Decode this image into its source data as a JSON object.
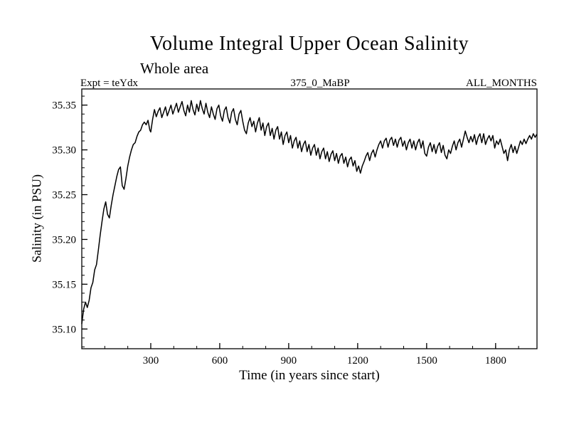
{
  "chart_data": {
    "type": "line",
    "title": "Volume Integral Upper Ocean Salinity",
    "subtitle": "Whole area",
    "annotations": {
      "expt": "Expt = teYdx",
      "period": "375_0_MaBP",
      "months": "ALL_MONTHS"
    },
    "xlabel": "Time (in years since start)",
    "ylabel": "Salinity (in PSU)",
    "xlim": [
      0,
      1980
    ],
    "ylim": [
      35.078,
      35.368
    ],
    "xticks": [
      300,
      600,
      900,
      1200,
      1500,
      1800
    ],
    "xtick_labels": [
      "300",
      "600",
      "900",
      "1200",
      "1500",
      "1800"
    ],
    "yticks": [
      35.1,
      35.15,
      35.2,
      35.25,
      35.3,
      35.35
    ],
    "ytick_labels": [
      "35.10",
      "35.15",
      "35.20",
      "35.25",
      "35.30",
      "35.35"
    ],
    "xminor_step": 100,
    "yminor_step": 0.01,
    "grid": false,
    "legend": "none",
    "line_color": "#000000",
    "series": [
      {
        "name": "volume-integral-upper-ocean-salinity",
        "points": [
          [
            0,
            35.106
          ],
          [
            8,
            35.122
          ],
          [
            16,
            35.13
          ],
          [
            24,
            35.124
          ],
          [
            32,
            35.132
          ],
          [
            40,
            35.146
          ],
          [
            48,
            35.152
          ],
          [
            56,
            35.166
          ],
          [
            64,
            35.172
          ],
          [
            72,
            35.188
          ],
          [
            80,
            35.205
          ],
          [
            88,
            35.22
          ],
          [
            96,
            35.234
          ],
          [
            104,
            35.242
          ],
          [
            112,
            35.228
          ],
          [
            120,
            35.224
          ],
          [
            128,
            35.238
          ],
          [
            136,
            35.25
          ],
          [
            144,
            35.26
          ],
          [
            152,
            35.27
          ],
          [
            160,
            35.278
          ],
          [
            168,
            35.281
          ],
          [
            176,
            35.26
          ],
          [
            184,
            35.256
          ],
          [
            192,
            35.268
          ],
          [
            200,
            35.282
          ],
          [
            208,
            35.292
          ],
          [
            216,
            35.3
          ],
          [
            224,
            35.306
          ],
          [
            232,
            35.308
          ],
          [
            240,
            35.315
          ],
          [
            248,
            35.32
          ],
          [
            256,
            35.322
          ],
          [
            264,
            35.328
          ],
          [
            272,
            35.331
          ],
          [
            280,
            35.328
          ],
          [
            288,
            35.333
          ],
          [
            296,
            35.322
          ],
          [
            300,
            35.32
          ],
          [
            308,
            35.334
          ],
          [
            316,
            35.345
          ],
          [
            324,
            35.337
          ],
          [
            332,
            35.343
          ],
          [
            340,
            35.347
          ],
          [
            348,
            35.336
          ],
          [
            356,
            35.342
          ],
          [
            364,
            35.348
          ],
          [
            372,
            35.338
          ],
          [
            380,
            35.344
          ],
          [
            388,
            35.35
          ],
          [
            396,
            35.34
          ],
          [
            404,
            35.346
          ],
          [
            412,
            35.352
          ],
          [
            420,
            35.342
          ],
          [
            428,
            35.348
          ],
          [
            436,
            35.354
          ],
          [
            444,
            35.344
          ],
          [
            452,
            35.338
          ],
          [
            460,
            35.35
          ],
          [
            468,
            35.342
          ],
          [
            476,
            35.355
          ],
          [
            484,
            35.345
          ],
          [
            492,
            35.339
          ],
          [
            500,
            35.351
          ],
          [
            508,
            35.343
          ],
          [
            516,
            35.355
          ],
          [
            524,
            35.346
          ],
          [
            532,
            35.34
          ],
          [
            540,
            35.352
          ],
          [
            548,
            35.342
          ],
          [
            556,
            35.336
          ],
          [
            564,
            35.348
          ],
          [
            572,
            35.34
          ],
          [
            580,
            35.334
          ],
          [
            588,
            35.346
          ],
          [
            596,
            35.35
          ],
          [
            604,
            35.338
          ],
          [
            612,
            35.332
          ],
          [
            620,
            35.344
          ],
          [
            628,
            35.348
          ],
          [
            636,
            35.336
          ],
          [
            644,
            35.33
          ],
          [
            652,
            35.342
          ],
          [
            660,
            35.346
          ],
          [
            668,
            35.334
          ],
          [
            676,
            35.328
          ],
          [
            684,
            35.34
          ],
          [
            692,
            35.344
          ],
          [
            700,
            35.332
          ],
          [
            708,
            35.322
          ],
          [
            716,
            35.318
          ],
          [
            724,
            35.33
          ],
          [
            732,
            35.336
          ],
          [
            740,
            35.326
          ],
          [
            748,
            35.332
          ],
          [
            756,
            35.32
          ],
          [
            764,
            35.33
          ],
          [
            772,
            35.336
          ],
          [
            780,
            35.322
          ],
          [
            788,
            35.33
          ],
          [
            796,
            35.316
          ],
          [
            804,
            35.326
          ],
          [
            812,
            35.33
          ],
          [
            820,
            35.316
          ],
          [
            828,
            35.324
          ],
          [
            836,
            35.312
          ],
          [
            844,
            35.322
          ],
          [
            852,
            35.326
          ],
          [
            860,
            35.312
          ],
          [
            868,
            35.32
          ],
          [
            876,
            35.306
          ],
          [
            884,
            35.316
          ],
          [
            892,
            35.32
          ],
          [
            900,
            35.308
          ],
          [
            908,
            35.316
          ],
          [
            916,
            35.302
          ],
          [
            924,
            35.31
          ],
          [
            932,
            35.314
          ],
          [
            940,
            35.302
          ],
          [
            948,
            35.31
          ],
          [
            956,
            35.298
          ],
          [
            964,
            35.306
          ],
          [
            972,
            35.31
          ],
          [
            980,
            35.298
          ],
          [
            988,
            35.306
          ],
          [
            996,
            35.294
          ],
          [
            1004,
            35.302
          ],
          [
            1012,
            35.306
          ],
          [
            1020,
            35.294
          ],
          [
            1028,
            35.302
          ],
          [
            1036,
            35.29
          ],
          [
            1044,
            35.298
          ],
          [
            1052,
            35.302
          ],
          [
            1060,
            35.29
          ],
          [
            1068,
            35.298
          ],
          [
            1076,
            35.287
          ],
          [
            1084,
            35.295
          ],
          [
            1092,
            35.299
          ],
          [
            1100,
            35.288
          ],
          [
            1108,
            35.296
          ],
          [
            1116,
            35.285
          ],
          [
            1124,
            35.293
          ],
          [
            1132,
            35.296
          ],
          [
            1140,
            35.285
          ],
          [
            1148,
            35.292
          ],
          [
            1156,
            35.281
          ],
          [
            1164,
            35.289
          ],
          [
            1172,
            35.292
          ],
          [
            1180,
            35.282
          ],
          [
            1188,
            35.288
          ],
          [
            1196,
            35.276
          ],
          [
            1204,
            35.282
          ],
          [
            1212,
            35.274
          ],
          [
            1220,
            35.282
          ],
          [
            1228,
            35.287
          ],
          [
            1236,
            35.293
          ],
          [
            1244,
            35.297
          ],
          [
            1252,
            35.288
          ],
          [
            1260,
            35.296
          ],
          [
            1268,
            35.3
          ],
          [
            1276,
            35.292
          ],
          [
            1284,
            35.3
          ],
          [
            1292,
            35.306
          ],
          [
            1300,
            35.31
          ],
          [
            1308,
            35.302
          ],
          [
            1316,
            35.31
          ],
          [
            1324,
            35.313
          ],
          [
            1332,
            35.303
          ],
          [
            1340,
            35.311
          ],
          [
            1348,
            35.314
          ],
          [
            1356,
            35.305
          ],
          [
            1364,
            35.312
          ],
          [
            1372,
            35.303
          ],
          [
            1380,
            35.311
          ],
          [
            1388,
            35.314
          ],
          [
            1396,
            35.304
          ],
          [
            1404,
            35.31
          ],
          [
            1412,
            35.3
          ],
          [
            1420,
            35.308
          ],
          [
            1428,
            35.312
          ],
          [
            1436,
            35.302
          ],
          [
            1444,
            35.31
          ],
          [
            1452,
            35.3
          ],
          [
            1460,
            35.308
          ],
          [
            1468,
            35.312
          ],
          [
            1476,
            35.302
          ],
          [
            1484,
            35.31
          ],
          [
            1492,
            35.296
          ],
          [
            1500,
            35.293
          ],
          [
            1508,
            35.303
          ],
          [
            1516,
            35.308
          ],
          [
            1524,
            35.298
          ],
          [
            1532,
            35.306
          ],
          [
            1540,
            35.296
          ],
          [
            1548,
            35.304
          ],
          [
            1556,
            35.308
          ],
          [
            1564,
            35.297
          ],
          [
            1572,
            35.305
          ],
          [
            1580,
            35.294
          ],
          [
            1588,
            35.29
          ],
          [
            1596,
            35.3
          ],
          [
            1604,
            35.296
          ],
          [
            1612,
            35.304
          ],
          [
            1620,
            35.31
          ],
          [
            1628,
            35.3
          ],
          [
            1636,
            35.308
          ],
          [
            1644,
            35.312
          ],
          [
            1652,
            35.303
          ],
          [
            1660,
            35.312
          ],
          [
            1668,
            35.321
          ],
          [
            1676,
            35.314
          ],
          [
            1684,
            35.308
          ],
          [
            1692,
            35.315
          ],
          [
            1700,
            35.309
          ],
          [
            1708,
            35.317
          ],
          [
            1716,
            35.306
          ],
          [
            1724,
            35.314
          ],
          [
            1732,
            35.318
          ],
          [
            1740,
            35.308
          ],
          [
            1748,
            35.318
          ],
          [
            1756,
            35.306
          ],
          [
            1764,
            35.312
          ],
          [
            1772,
            35.316
          ],
          [
            1780,
            35.31
          ],
          [
            1788,
            35.316
          ],
          [
            1796,
            35.302
          ],
          [
            1804,
            35.31
          ],
          [
            1812,
            35.306
          ],
          [
            1820,
            35.312
          ],
          [
            1828,
            35.304
          ],
          [
            1836,
            35.296
          ],
          [
            1844,
            35.3
          ],
          [
            1852,
            35.288
          ],
          [
            1860,
            35.3
          ],
          [
            1868,
            35.306
          ],
          [
            1876,
            35.297
          ],
          [
            1884,
            35.304
          ],
          [
            1892,
            35.296
          ],
          [
            1900,
            35.303
          ],
          [
            1908,
            35.31
          ],
          [
            1916,
            35.306
          ],
          [
            1924,
            35.312
          ],
          [
            1932,
            35.307
          ],
          [
            1940,
            35.312
          ],
          [
            1948,
            35.316
          ],
          [
            1956,
            35.312
          ],
          [
            1964,
            35.318
          ],
          [
            1972,
            35.314
          ],
          [
            1978,
            35.317
          ]
        ]
      }
    ]
  }
}
